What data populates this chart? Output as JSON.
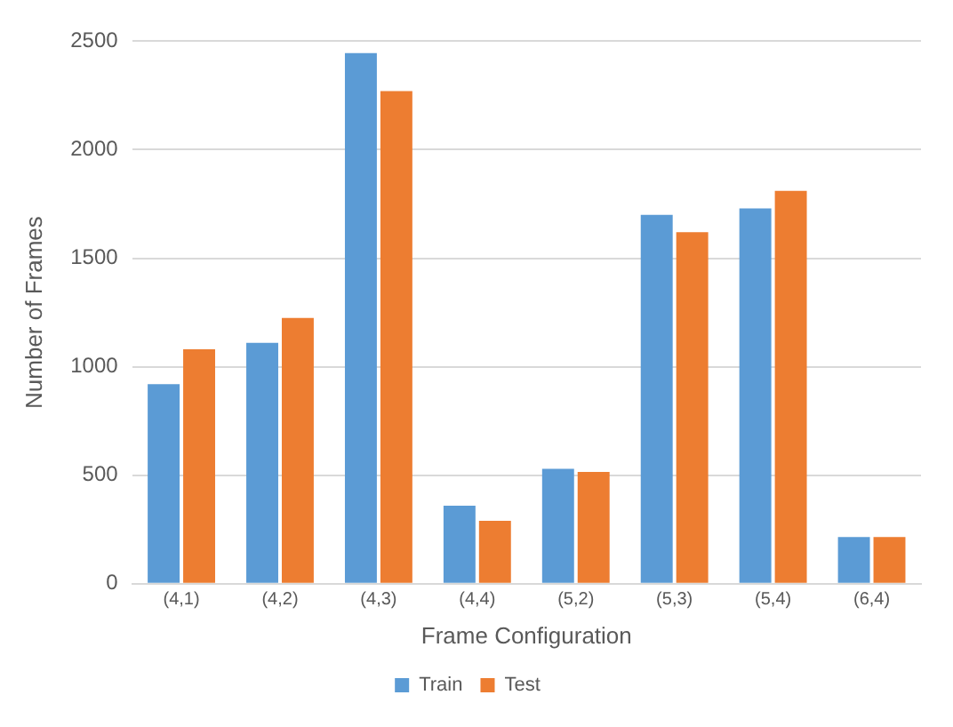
{
  "chart_data": {
    "type": "bar",
    "xlabel": "Frame Configuration",
    "ylabel": "Number of Frames",
    "categories": [
      "(4,1)",
      "(4,2)",
      "(4,3)",
      "(4,4)",
      "(5,2)",
      "(5,3)",
      "(5,4)",
      "(6,4)"
    ],
    "series": [
      {
        "name": "Train",
        "color": "#5b9bd5",
        "values": [
          920,
          1110,
          2445,
          360,
          530,
          1700,
          1730,
          215
        ]
      },
      {
        "name": "Test",
        "color": "#ed7d31",
        "values": [
          1080,
          1225,
          2270,
          290,
          515,
          1620,
          1810,
          215
        ]
      }
    ],
    "ylim": [
      0,
      2500
    ],
    "yticks": [
      0,
      500,
      1000,
      1500,
      2000,
      2500
    ],
    "grid": "y",
    "legend": "bottom"
  }
}
